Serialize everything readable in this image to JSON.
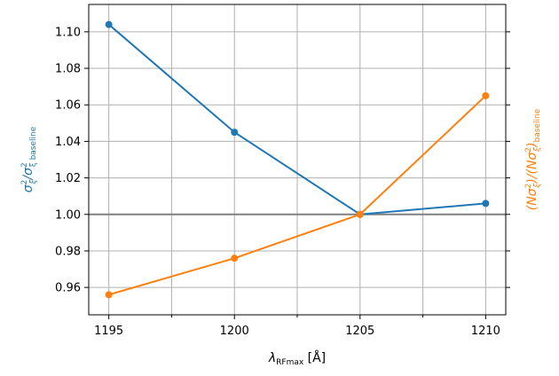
{
  "chart_data": {
    "type": "line",
    "x": [
      1195,
      1200,
      1205,
      1210
    ],
    "xlim": [
      1194.2,
      1210.8
    ],
    "ylim": [
      0.945,
      1.115
    ],
    "x_ticks": [
      1195,
      1200,
      1205,
      1210
    ],
    "x_minor_ticks": [
      1197.5,
      1202.5,
      1207.5
    ],
    "y_ticks": [
      0.96,
      0.98,
      1.0,
      1.02,
      1.04,
      1.06,
      1.08,
      1.1
    ],
    "x_tick_labels": [
      "1195",
      "1200",
      "1205",
      "1210"
    ],
    "y_tick_labels": [
      "0.96",
      "0.98",
      "1.00",
      "1.02",
      "1.04",
      "1.06",
      "1.08",
      "1.10"
    ],
    "xlabel": {
      "symbol": "λ",
      "sub": "RFmax",
      "unit": " [Å]"
    },
    "ylabel_left": {
      "pre": "σ",
      "pre_sup": "2",
      "pre_sub": "ξ",
      "slash": "/σ",
      "post_sup": "2",
      "post_sub": "ξ baseline"
    },
    "ylabel_right": {
      "pre": "(Nσ",
      "pre_sup": "2",
      "pre_sub": "ξ",
      "mid": ")/(Nσ",
      "post_sup": "2",
      "post_sub": "ξ",
      "end": ")",
      "end_sub": "baseline"
    },
    "grid": true,
    "reference_line": 1.0,
    "series": [
      {
        "values": [
          1.104,
          1.045,
          1.0,
          1.006
        ],
        "color": "#1f77b4",
        "axis": "left"
      },
      {
        "values": [
          0.956,
          0.976,
          1.0,
          1.065
        ],
        "color": "#ff7f0e",
        "axis": "right"
      }
    ],
    "colors": {
      "left_axis_label": "#1f77b4",
      "right_axis_label": "#ff7f0e",
      "reference": "#808080",
      "grid": "#b0b0b0"
    }
  }
}
